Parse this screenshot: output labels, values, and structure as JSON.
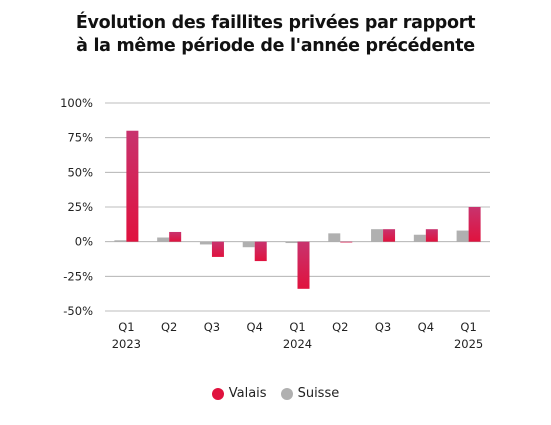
{
  "chart_data": {
    "type": "bar",
    "title_lines": [
      "Évolution des faillites privées par rapport",
      "à la même période de l'année précédente"
    ],
    "categories": [
      "Q1 2023",
      "Q2",
      "Q3",
      "Q4",
      "Q1 2024",
      "Q2",
      "Q3",
      "Q4",
      "Q1 2025"
    ],
    "category_labels": [
      [
        "Q1",
        "2023"
      ],
      [
        "Q2"
      ],
      [
        "Q3"
      ],
      [
        "Q4"
      ],
      [
        "Q1",
        "2024"
      ],
      [
        "Q2"
      ],
      [
        "Q3"
      ],
      [
        "Q4"
      ],
      [
        "Q1",
        "2025"
      ]
    ],
    "series": [
      {
        "name": "Valais",
        "color": "#e0123e",
        "values": [
          80,
          7,
          -11,
          -14,
          -34,
          0,
          9,
          9,
          25
        ]
      },
      {
        "name": "Suisse",
        "color": "#b0b0b0",
        "values": [
          1,
          3,
          -2,
          -4,
          -1,
          6,
          9,
          5,
          8
        ]
      }
    ],
    "ylim": [
      -50,
      100
    ],
    "yticks": [
      100,
      75,
      50,
      25,
      0,
      -25,
      -50
    ],
    "ytick_labels": [
      "100%",
      "75%",
      "50%",
      "25%",
      "0%",
      "-25%",
      "-50%"
    ],
    "grid": true,
    "legend_position": "bottom"
  }
}
